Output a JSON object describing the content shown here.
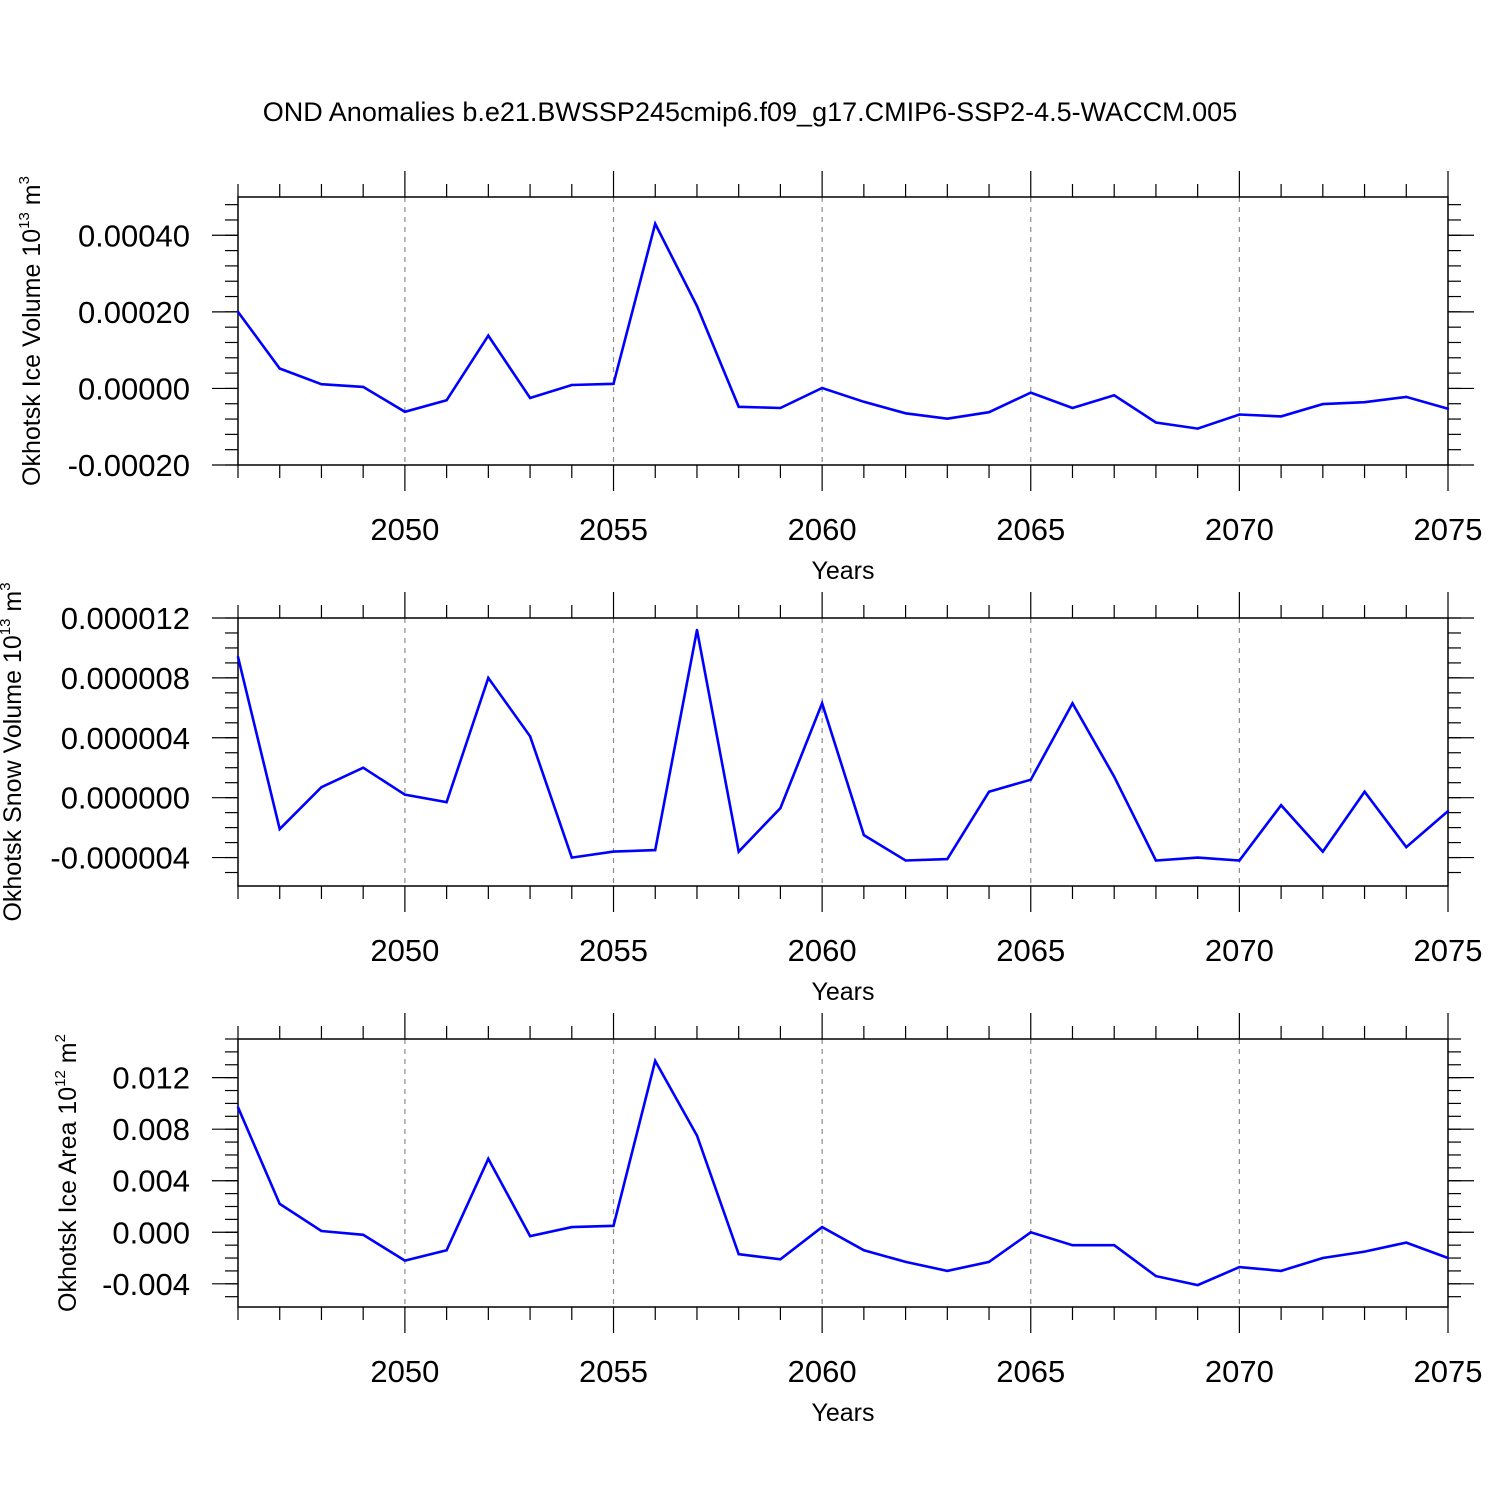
{
  "colors": {
    "line": "#0000ff",
    "axis": "#000000",
    "grid": "#8c8c8c"
  },
  "chart_data": {
    "title": "OND Anomalies b.e21.BWSSP245cmip6.f09_g17.CMIP6-SSP2-4.5-WACCM.005",
    "panels": [
      {
        "type": "line",
        "ylabel": {
          "base": "Okhotsk Ice Volume 10",
          "exp": "13",
          "unit": " m",
          "unit_exp": "3"
        },
        "xlabel": "Years",
        "xlim": [
          2046,
          2075
        ],
        "ylim": [
          -0.0002,
          0.0005
        ],
        "x_ticks": [
          "2050",
          "2055",
          "2060",
          "2065",
          "2070",
          "2075"
        ],
        "y_ticks": [
          {
            "value": -0.0002,
            "label": "-0.00020"
          },
          {
            "value": 0,
            "label": "0.00000"
          },
          {
            "value": 0.0002,
            "label": "0.00020"
          },
          {
            "value": 0.0004,
            "label": "0.00040"
          }
        ],
        "minor_step": 4e-05,
        "grid_x": [
          2050,
          2055,
          2060,
          2065,
          2070
        ],
        "x": [
          2046,
          2047,
          2048,
          2049,
          2050,
          2051,
          2052,
          2053,
          2054,
          2055,
          2056,
          2057,
          2058,
          2059,
          2060,
          2061,
          2062,
          2063,
          2064,
          2065,
          2066,
          2067,
          2068,
          2069,
          2070,
          2071,
          2072,
          2073,
          2074,
          2075
        ],
        "values": [
          0.0002,
          5.2e-05,
          1.1e-05,
          4e-06,
          -6.1e-05,
          -3.1e-05,
          0.000138,
          -2.5e-05,
          9e-06,
          1.2e-05,
          0.00043,
          0.000215,
          -4.8e-05,
          -5.1e-05,
          1e-06,
          -3.5e-05,
          -6.5e-05,
          -7.9e-05,
          -6.2e-05,
          -1.1e-05,
          -5.1e-05,
          -1.8e-05,
          -8.9e-05,
          -0.000105,
          -6.8e-05,
          -7.3e-05,
          -4.1e-05,
          -3.6e-05,
          -2.2e-05,
          -5.3e-05
        ]
      },
      {
        "type": "line",
        "ylabel": {
          "base": "Okhotsk Snow Volume 10",
          "exp": "13",
          "unit": " m",
          "unit_exp": "3"
        },
        "xlabel": "Years",
        "xlim": [
          2046,
          2075
        ],
        "ylim": [
          -5.9e-06,
          1.2e-05
        ],
        "x_ticks": [
          "2050",
          "2055",
          "2060",
          "2065",
          "2070",
          "2075"
        ],
        "y_ticks": [
          {
            "value": -4e-06,
            "label": "-0.000004"
          },
          {
            "value": 0,
            "label": "0.000000"
          },
          {
            "value": 4e-06,
            "label": "0.000004"
          },
          {
            "value": 8e-06,
            "label": "0.000008"
          },
          {
            "value": 1.2e-05,
            "label": "0.000012"
          }
        ],
        "minor_step": 1e-06,
        "grid_x": [
          2050,
          2055,
          2060,
          2065,
          2070
        ],
        "x": [
          2046,
          2047,
          2048,
          2049,
          2050,
          2051,
          2052,
          2053,
          2054,
          2055,
          2056,
          2057,
          2058,
          2059,
          2060,
          2061,
          2062,
          2063,
          2064,
          2065,
          2066,
          2067,
          2068,
          2069,
          2070,
          2071,
          2072,
          2073,
          2074,
          2075
        ],
        "values": [
          9.4e-06,
          -2.1e-06,
          7e-07,
          2e-06,
          2e-07,
          -3e-07,
          8e-06,
          4.1e-06,
          -4e-06,
          -3.6e-06,
          -3.5e-06,
          1.12e-05,
          -3.6e-06,
          -7e-07,
          6.3e-06,
          -2.5e-06,
          -4.2e-06,
          -4.1e-06,
          4e-07,
          1.2e-06,
          6.3e-06,
          1.4e-06,
          -4.2e-06,
          -4e-06,
          -4.2e-06,
          -5e-07,
          -3.6e-06,
          4e-07,
          -3.3e-06,
          -9e-07
        ]
      },
      {
        "type": "line",
        "ylabel": {
          "base": "Okhotsk Ice Area 10",
          "exp": "12",
          "unit": " m",
          "unit_exp": "2"
        },
        "xlabel": "Years",
        "xlim": [
          2046,
          2075
        ],
        "ylim": [
          -0.0058,
          0.015
        ],
        "x_ticks": [
          "2050",
          "2055",
          "2060",
          "2065",
          "2070",
          "2075"
        ],
        "y_ticks": [
          {
            "value": -0.004,
            "label": "-0.004"
          },
          {
            "value": 0,
            "label": "0.000"
          },
          {
            "value": 0.004,
            "label": "0.004"
          },
          {
            "value": 0.008,
            "label": "0.008"
          },
          {
            "value": 0.012,
            "label": "0.012"
          }
        ],
        "minor_step": 0.001,
        "grid_x": [
          2050,
          2055,
          2060,
          2065,
          2070
        ],
        "x": [
          2046,
          2047,
          2048,
          2049,
          2050,
          2051,
          2052,
          2053,
          2054,
          2055,
          2056,
          2057,
          2058,
          2059,
          2060,
          2061,
          2062,
          2063,
          2064,
          2065,
          2066,
          2067,
          2068,
          2069,
          2070,
          2071,
          2072,
          2073,
          2074,
          2075
        ],
        "values": [
          0.0097,
          0.0022,
          0.0001,
          -0.0002,
          -0.0022,
          -0.0014,
          0.0057,
          -0.0003,
          0.0004,
          0.0005,
          0.0133,
          0.0075,
          -0.0017,
          -0.0021,
          0.0004,
          -0.0014,
          -0.0023,
          -0.003,
          -0.0023,
          0.0,
          -0.001,
          -0.001,
          -0.0034,
          -0.0041,
          -0.0027,
          -0.003,
          -0.002,
          -0.0015,
          -0.0008,
          -0.002
        ]
      }
    ]
  }
}
